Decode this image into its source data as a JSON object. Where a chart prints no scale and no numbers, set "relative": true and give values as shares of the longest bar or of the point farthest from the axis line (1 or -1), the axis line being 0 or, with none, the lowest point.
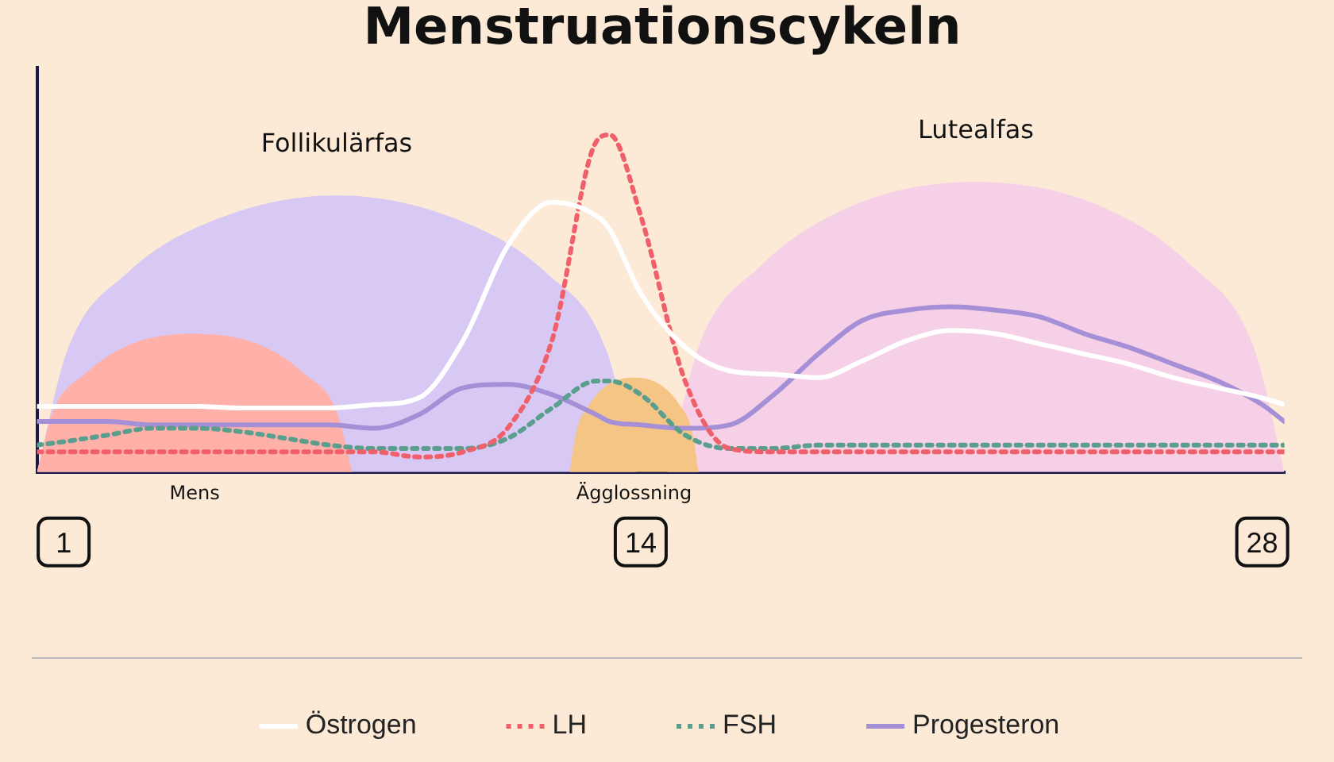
{
  "chart_data": {
    "type": "line",
    "title": "Menstruationscykeln",
    "relative": true,
    "xlim": [
      0.4,
      28.5
    ],
    "xticks": [
      1,
      14,
      28
    ],
    "legend": "bottom",
    "grid": false,
    "marker": "none",
    "x": [
      0.4,
      1,
      2,
      3,
      4,
      5,
      6,
      7,
      8,
      9,
      10,
      11,
      12,
      13,
      13.3,
      14,
      15,
      16,
      17,
      18,
      19,
      20,
      21,
      22,
      23,
      24,
      25,
      26,
      27,
      28,
      28.5
    ],
    "series": [
      {
        "type": "area",
        "color": "#d8c8f4",
        "x": [
          0.4,
          1.08,
          2.43,
          4.45,
          7.15,
          9.85,
          11.88,
          13.23,
          13.9
        ],
        "values": [
          0,
          0.36,
          0.59,
          0.75,
          0.82,
          0.75,
          0.59,
          0.36,
          0
        ]
      },
      {
        "type": "area",
        "color": "#f6d0e6",
        "x": [
          14.6,
          15.3,
          16.69,
          18.77,
          21.55,
          24.33,
          26.42,
          27.81,
          28.5
        ],
        "values": [
          0,
          0.37,
          0.61,
          0.79,
          0.86,
          0.79,
          0.61,
          0.37,
          0
        ]
      },
      {
        "type": "area",
        "color": "#ffb0a8",
        "x": [
          0.4,
          0.76,
          1.47,
          2.53,
          3.95,
          5.37,
          6.44,
          7.15,
          7.5
        ],
        "values": [
          0,
          0.18,
          0.29,
          0.38,
          0.41,
          0.38,
          0.29,
          0.18,
          0
        ]
      },
      {
        "type": "area",
        "color": "#f5c585",
        "x": [
          12.4,
          12.55,
          12.84,
          13.27,
          13.85,
          14.43,
          14.87,
          15.16,
          15.3
        ],
        "values": [
          0,
          0.12,
          0.2,
          0.26,
          0.28,
          0.26,
          0.2,
          0.12,
          0
        ]
      },
      {
        "name": "Östrogen",
        "color": "#ffffff",
        "line_style": "solid",
        "values": [
          0.195,
          0.195,
          0.195,
          0.195,
          0.195,
          0.19,
          0.19,
          0.19,
          0.2,
          0.22,
          0.39,
          0.67,
          0.8,
          0.76,
          0.72,
          0.53,
          0.37,
          0.3,
          0.29,
          0.28,
          0.33,
          0.39,
          0.42,
          0.41,
          0.38,
          0.35,
          0.32,
          0.28,
          0.25,
          0.22,
          0.2
        ]
      },
      {
        "name": "LH",
        "color": "#f0606a",
        "line_style": "dotted",
        "values": [
          0.06,
          0.06,
          0.06,
          0.06,
          0.06,
          0.06,
          0.06,
          0.06,
          0.06,
          0.045,
          0.06,
          0.13,
          0.39,
          0.98,
          1,
          0.76,
          0.27,
          0.07,
          0.06,
          0.06,
          0.06,
          0.06,
          0.06,
          0.06,
          0.06,
          0.06,
          0.06,
          0.06,
          0.06,
          0.06,
          0.06
        ]
      },
      {
        "name": "FSH",
        "color": "#5a9e8e",
        "line_style": "dotted",
        "values": [
          0.08,
          0.09,
          0.11,
          0.13,
          0.13,
          0.12,
          0.1,
          0.08,
          0.07,
          0.07,
          0.07,
          0.1,
          0.19,
          0.27,
          0.27,
          0.23,
          0.11,
          0.07,
          0.07,
          0.08,
          0.08,
          0.08,
          0.08,
          0.08,
          0.08,
          0.08,
          0.08,
          0.08,
          0.08,
          0.08,
          0.08
        ]
      },
      {
        "name": "Progesteron",
        "color": "#a58fd6",
        "line_style": "solid",
        "values": [
          0.15,
          0.15,
          0.15,
          0.14,
          0.14,
          0.14,
          0.14,
          0.14,
          0.13,
          0.17,
          0.25,
          0.26,
          0.23,
          0.17,
          0.15,
          0.14,
          0.13,
          0.14,
          0.23,
          0.35,
          0.45,
          0.48,
          0.49,
          0.48,
          0.46,
          0.41,
          0.37,
          0.32,
          0.27,
          0.2,
          0.15
        ]
      }
    ],
    "annotations": [
      "Follikulärfas",
      "Lutealfas",
      "Mens",
      "Ägglossning"
    ]
  }
}
